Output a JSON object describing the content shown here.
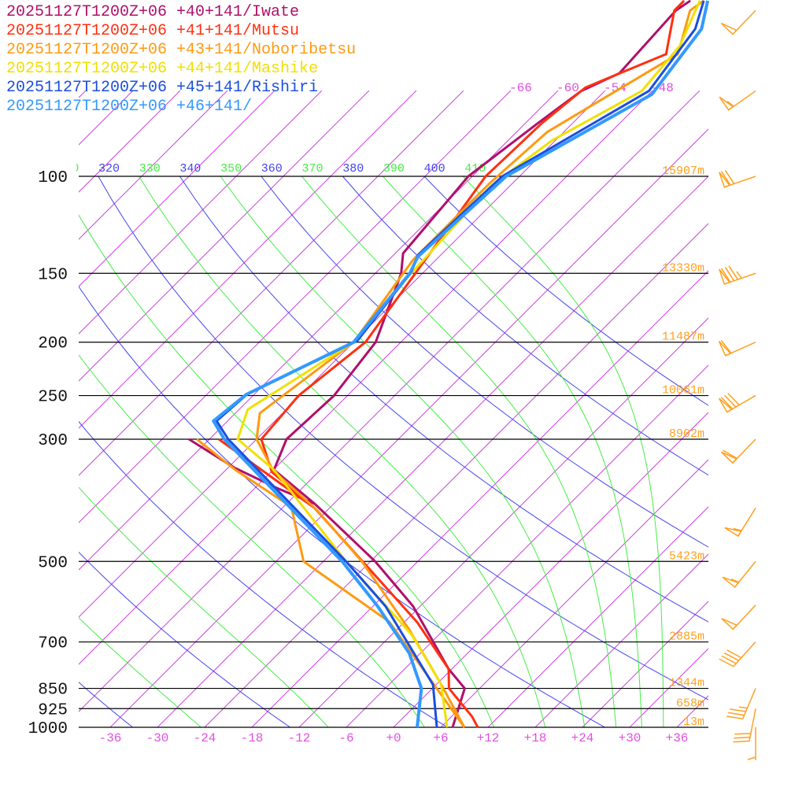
{
  "legend": [
    {
      "label": "20251127T1200Z+06 +40+141/Iwate",
      "color": "#b0106a"
    },
    {
      "label": "20251127T1200Z+06 +41+141/Mutsu",
      "color": "#ff3010"
    },
    {
      "label": "20251127T1200Z+06 +43+141/Noboribetsu",
      "color": "#ff9a10"
    },
    {
      "label": "20251127T1200Z+06 +44+141/Mashike",
      "color": "#f0e000"
    },
    {
      "label": "20251127T1200Z+06 +45+141/Rishiri",
      "color": "#1a4ee0"
    },
    {
      "label": "20251127T1200Z+06 +46+141/",
      "color": "#3399ff"
    }
  ],
  "chart_data": {
    "type": "line",
    "diagram": "skew-T log-p",
    "y_axis": {
      "scale": "log",
      "unit": "hPa",
      "range": [
        1000,
        48
      ],
      "tick_labels": [
        100,
        150,
        200,
        250,
        300,
        500,
        700,
        850,
        925,
        1000
      ]
    },
    "x_axis": {
      "unit": "°C",
      "tick_labels": [
        "-36",
        "-30",
        "-24",
        "-18",
        "-12",
        "-6",
        "+0",
        "+6",
        "+12",
        "+18",
        "+24",
        "+30",
        "+36"
      ],
      "tick_values": [
        -36,
        -30,
        -24,
        -18,
        -12,
        -6,
        0,
        6,
        12,
        18,
        24,
        30,
        36
      ],
      "skew": "45°"
    },
    "isotherm_labels": [
      "-66",
      "-60",
      "-54",
      "-48"
    ],
    "isotherm_values": [
      -66,
      -60,
      -54,
      -48
    ],
    "dry_adiabat_labels": [
      "320",
      "340",
      "360",
      "380",
      "400"
    ],
    "moist_adiabat_labels": [
      "310",
      "330",
      "350",
      "370",
      "390",
      "410"
    ],
    "dry_adiabats_theta_K": [
      240,
      260,
      280,
      300,
      320,
      340,
      360,
      380,
      400
    ],
    "moist_adiabats_thetae_K": [
      250,
      270,
      290,
      310,
      330,
      350,
      370,
      390,
      410
    ],
    "heights": [
      {
        "p": 100,
        "label": "15907m"
      },
      {
        "p": 150,
        "label": "13330m"
      },
      {
        "p": 200,
        "label": "11487m"
      },
      {
        "p": 250,
        "label": "10061m"
      },
      {
        "p": 300,
        "label": "8902m"
      },
      {
        "p": 500,
        "label": "5423m"
      },
      {
        "p": 700,
        "label": "2885m"
      },
      {
        "p": 850,
        "label": "1344m"
      },
      {
        "p": 925,
        "label": "658m"
      },
      {
        "p": 1000,
        "label": "13m"
      }
    ],
    "series": [
      {
        "name": "20251127T1200Z+06 +40+141/Iwate",
        "color": "#b0106a",
        "temperature": [
          [
            1000,
            7.5
          ],
          [
            850,
            4.1
          ],
          [
            784,
            -0.4
          ],
          [
            603,
            -12.9
          ],
          [
            500,
            -23.4
          ],
          [
            393,
            -38.4
          ],
          [
            341,
            -47.9
          ],
          [
            300,
            -50.2
          ],
          [
            250,
            -49.7
          ],
          [
            200,
            -51.2
          ],
          [
            150,
            -56.7
          ],
          [
            138,
            -59
          ],
          [
            100,
            -60.5
          ],
          [
            80,
            -58.4
          ],
          [
            70,
            -57
          ],
          [
            65,
            -54.4
          ],
          [
            50,
            -55.2
          ],
          [
            48,
            -54.6
          ]
        ],
        "secondary": [
          [
            300,
            -62.6
          ],
          [
            338,
            -53.2
          ],
          [
            368,
            -45.2
          ],
          [
            393,
            -38.4
          ]
        ]
      },
      {
        "name": "20251127T1200Z+06 +41+141/Mutsu",
        "color": "#ff3010",
        "temperature": [
          [
            1000,
            10.7
          ],
          [
            956,
            8.6
          ],
          [
            850,
            2.1
          ],
          [
            784,
            -0.4
          ],
          [
            644,
            -10.4
          ],
          [
            400,
            -37.9
          ],
          [
            344,
            -47.9
          ],
          [
            300,
            -53.4
          ],
          [
            250,
            -54.2
          ],
          [
            200,
            -52.5
          ],
          [
            100,
            -58.3
          ],
          [
            80,
            -57.9
          ],
          [
            69,
            -56.9
          ],
          [
            60,
            -50.9
          ],
          [
            50,
            -55.4
          ],
          [
            48,
            -55.4
          ]
        ],
        "secondary": [
          [
            300,
            -58.8
          ],
          [
            400,
            -37.9
          ]
        ]
      },
      {
        "name": "20251127T1200Z+06 +43+141/Noboribetsu",
        "color": "#ff9a10",
        "temperature": [
          [
            1000,
            9
          ],
          [
            836,
            0.6
          ],
          [
            665,
            -10.4
          ],
          [
            500,
            -25.1
          ],
          [
            403,
            -37.4
          ],
          [
            342,
            -47.9
          ],
          [
            300,
            -54
          ],
          [
            269,
            -56.9
          ],
          [
            200,
            -54
          ],
          [
            142,
            -56.9
          ],
          [
            103,
            -56.9
          ],
          [
            83,
            -56.1
          ],
          [
            60,
            -49.4
          ],
          [
            50,
            -53.4
          ],
          [
            48,
            -52.9
          ]
        ],
        "secondary": [
          [
            300,
            -61.6
          ],
          [
            342,
            -52.6
          ],
          [
            398,
            -41
          ],
          [
            500,
            -32.5
          ],
          [
            644,
            -13.9
          ],
          [
            1000,
            9
          ]
        ]
      },
      {
        "name": "20251127T1200Z+06 +44+141/Mashike",
        "color": "#f0e000",
        "temperature": [
          [
            1000,
            6.8
          ],
          [
            836,
            0.6
          ],
          [
            680,
            -9.4
          ],
          [
            500,
            -27.1
          ],
          [
            341,
            -47.9
          ],
          [
            300,
            -56.4
          ],
          [
            265,
            -58.9
          ],
          [
            200,
            -54
          ],
          [
            151,
            -55.4
          ],
          [
            104,
            -56.4
          ],
          [
            86,
            -54.4
          ],
          [
            70,
            -49.3
          ],
          [
            58,
            -50.2
          ],
          [
            48,
            -53.4
          ]
        ],
        "secondary": []
      },
      {
        "name": "20251127T1200Z+06 +45+141/Rishiri",
        "color": "#1a4ee0",
        "temperature": [
          [
            1000,
            5.5
          ],
          [
            837,
            -0.4
          ],
          [
            603,
            -16.4
          ],
          [
            500,
            -27.1
          ],
          [
            300,
            -57.6
          ],
          [
            278,
            -61.4
          ],
          [
            248,
            -60.9
          ],
          [
            199,
            -53.7
          ],
          [
            149,
            -55.6
          ],
          [
            139,
            -56.9
          ],
          [
            100,
            -56.2
          ],
          [
            70,
            -48.4
          ],
          [
            54,
            -50.4
          ],
          [
            48,
            -52.9
          ]
        ],
        "secondary": []
      },
      {
        "name": "20251127T1200Z+06 +46+141/",
        "color": "#3399ff",
        "temperature": [
          [
            1000,
            3
          ],
          [
            850,
            -1.4
          ],
          [
            734,
            -7.4
          ],
          [
            603,
            -17.4
          ],
          [
            500,
            -27.6
          ],
          [
            300,
            -58.1
          ],
          [
            278,
            -61.8
          ],
          [
            249,
            -61
          ],
          [
            200,
            -54
          ],
          [
            150,
            -55.6
          ],
          [
            140,
            -56.7
          ],
          [
            100,
            -55.7
          ],
          [
            71,
            -47.6
          ],
          [
            54,
            -49.6
          ],
          [
            48,
            -52.4
          ]
        ],
        "secondary": []
      }
    ],
    "wind_barbs": [
      {
        "p": 50,
        "dir": 224,
        "speed_kt": 50
      },
      {
        "p": 70,
        "dir": 235,
        "speed_kt": 55
      },
      {
        "p": 100,
        "dir": 251,
        "speed_kt": 70
      },
      {
        "p": 150,
        "dir": 251,
        "speed_kt": 85
      },
      {
        "p": 200,
        "dir": 246,
        "speed_kt": 60
      },
      {
        "p": 250,
        "dir": 240,
        "speed_kt": 80
      },
      {
        "p": 300,
        "dir": 224,
        "speed_kt": 60
      },
      {
        "p": 400,
        "dir": 212,
        "speed_kt": 55
      },
      {
        "p": 500,
        "dir": 219,
        "speed_kt": 55
      },
      {
        "p": 600,
        "dir": 223,
        "speed_kt": 50
      },
      {
        "p": 700,
        "dir": 222,
        "speed_kt": 40
      },
      {
        "p": 850,
        "dir": 203,
        "speed_kt": 35
      },
      {
        "p": 925,
        "dir": 191,
        "speed_kt": 30
      },
      {
        "p": 1000,
        "dir": 180,
        "speed_kt": 5
      }
    ],
    "colors": {
      "isotherm": "#cc44dd",
      "dry_adiabat": "#4444ee",
      "moist_adiabat": "#44ee44",
      "isobar": "#000000",
      "height_label": "#ffa020",
      "barb": "#ffa020"
    }
  }
}
